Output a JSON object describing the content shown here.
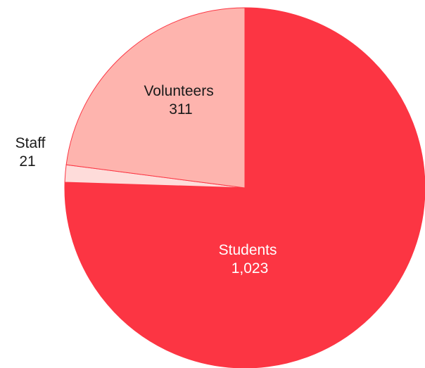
{
  "chart_data": {
    "type": "pie",
    "title": "",
    "slices": [
      {
        "label": "Students",
        "value": 1023,
        "display": "1,023",
        "color": "#fc3543",
        "label_color": "#ffffff"
      },
      {
        "label": "Staff",
        "value": 21,
        "display": "21",
        "color": "#fedcda",
        "label_color": "#1a1a1a"
      },
      {
        "label": "Volunteers",
        "value": 311,
        "display": "311",
        "color": "#feb4ae",
        "label_color": "#1a1a1a"
      }
    ]
  }
}
